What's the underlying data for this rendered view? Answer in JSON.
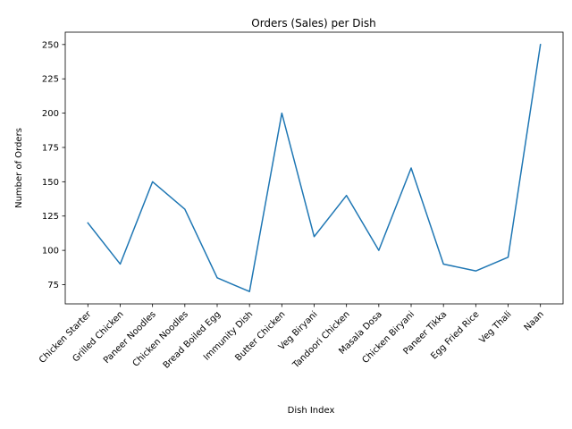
{
  "chart_data": {
    "type": "line",
    "title": "Orders (Sales) per Dish",
    "xlabel": "Dish Index",
    "ylabel": "Number of Orders",
    "categories": [
      "Chicken Starter",
      "Grilled Chicken",
      "Paneer Noodles",
      "Chicken Noodles",
      "Bread Boiled Egg",
      "Immunity Dish",
      "Butter Chicken",
      "Veg Biryani",
      "Tandoori Chicken",
      "Masala Dosa",
      "Chicken Biryani",
      "Paneer Tikka",
      "Egg Fried Rice",
      "Veg Thali",
      "Naan"
    ],
    "values": [
      120,
      90,
      150,
      130,
      80,
      70,
      200,
      110,
      140,
      100,
      160,
      90,
      85,
      95,
      250
    ],
    "ylim": [
      61,
      259
    ],
    "yticks": [
      75,
      100,
      125,
      150,
      175,
      200,
      225,
      250
    ],
    "grid": false,
    "line_color": "#1f77b4"
  }
}
